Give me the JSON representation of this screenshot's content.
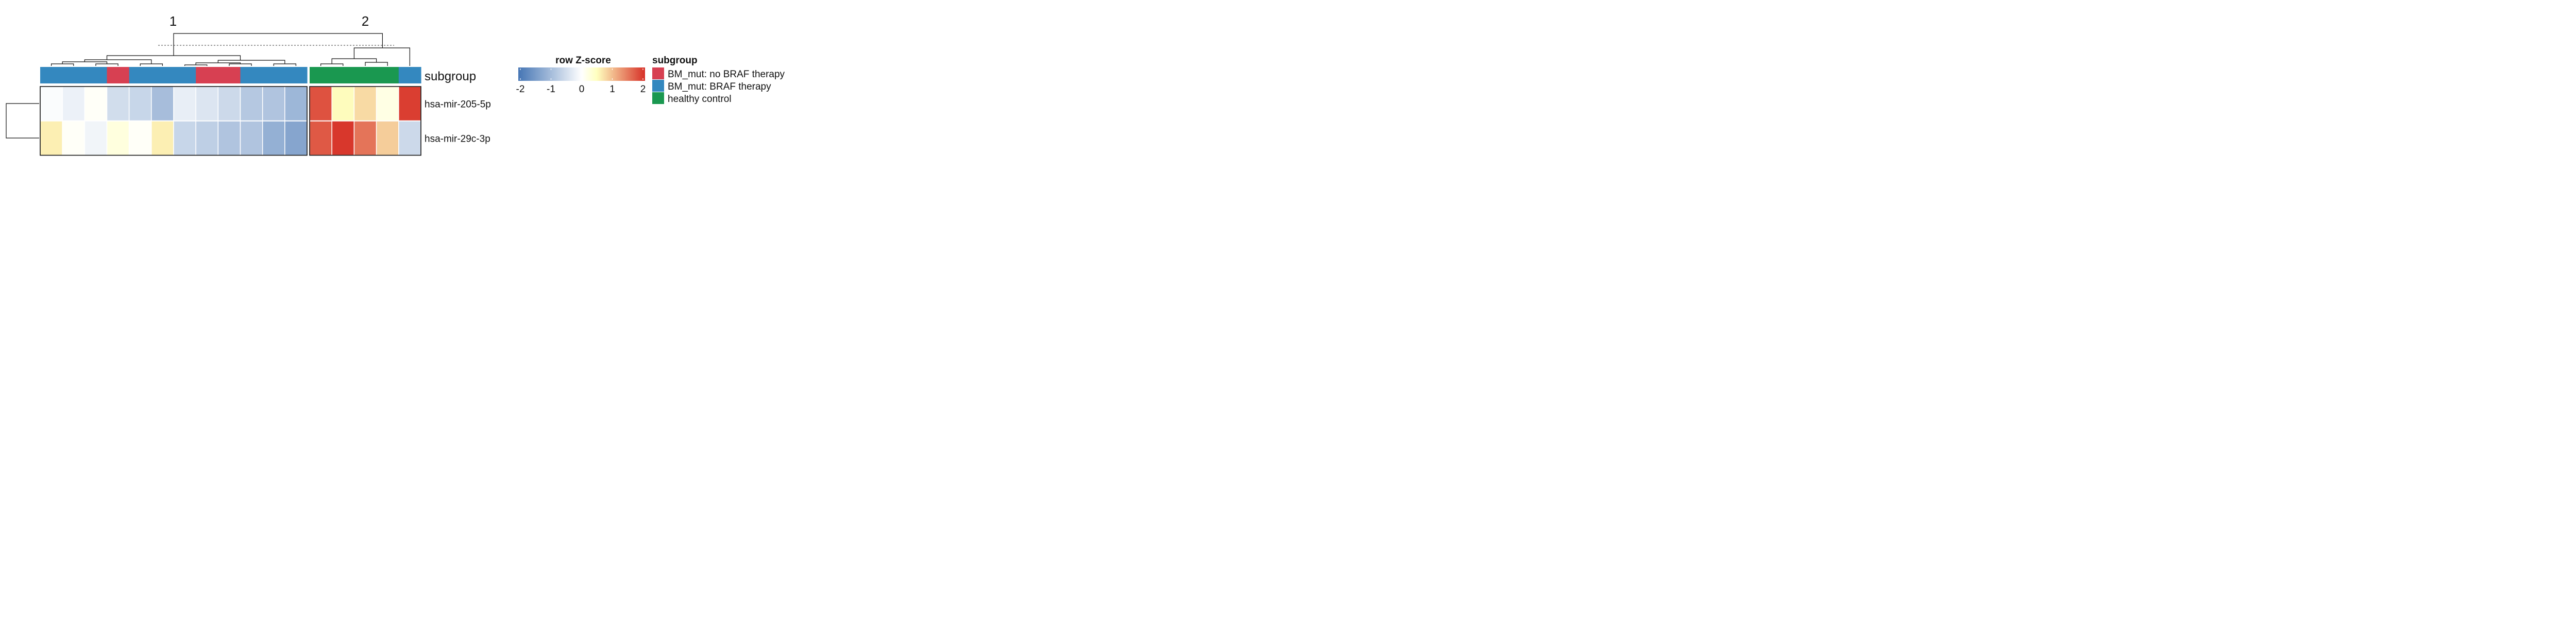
{
  "chart_data": {
    "type": "heatmap",
    "cluster_labels": [
      "1",
      "2"
    ],
    "annotation_track_label": "subgroup",
    "rows": [
      "hsa-mir-205-5p",
      "hsa-mir-29c-3p"
    ],
    "column_split_sizes": [
      12,
      5
    ],
    "column_subgroups": [
      "BM_mut: BRAF therapy",
      "BM_mut: BRAF therapy",
      "BM_mut: BRAF therapy",
      "BM_mut: no BRAF therapy",
      "BM_mut: BRAF therapy",
      "BM_mut: BRAF therapy",
      "BM_mut: BRAF therapy",
      "BM_mut: no BRAF therapy",
      "BM_mut: no BRAF therapy",
      "BM_mut: BRAF therapy",
      "BM_mut: BRAF therapy",
      "BM_mut: BRAF therapy",
      "healthy control",
      "healthy control",
      "healthy control",
      "healthy control",
      "BM_mut: BRAF therapy"
    ],
    "values": [
      [
        -0.05,
        -0.2,
        0.05,
        -0.5,
        -0.6,
        -0.95,
        -0.25,
        -0.38,
        -0.55,
        -0.8,
        -0.85,
        -1.05,
        1.75,
        0.5,
        0.75,
        0.2,
        1.9
      ],
      [
        0.6,
        0.05,
        -0.15,
        0.25,
        0.05,
        0.6,
        -0.6,
        -0.7,
        -0.85,
        -0.85,
        -1.15,
        -1.3,
        1.7,
        1.95,
        1.5,
        0.85,
        -0.55
      ]
    ],
    "colorbar": {
      "title": "row Z-score",
      "range": [
        -2,
        2
      ],
      "ticks": [
        "-2",
        "-1",
        "0",
        "1",
        "2"
      ],
      "stops": [
        "#4575b4",
        "#ffffff",
        "#ffffbf",
        "#d73027"
      ]
    },
    "legend": {
      "title": "subgroup",
      "placement": "right",
      "items": [
        {
          "label": "BM_mut: no BRAF therapy",
          "color": "#d74052"
        },
        {
          "label": "BM_mut: BRAF therapy",
          "color": "#3488bf"
        },
        {
          "label": "healthy control",
          "color": "#1a9850"
        }
      ]
    },
    "cut_line": true,
    "grid": true
  }
}
